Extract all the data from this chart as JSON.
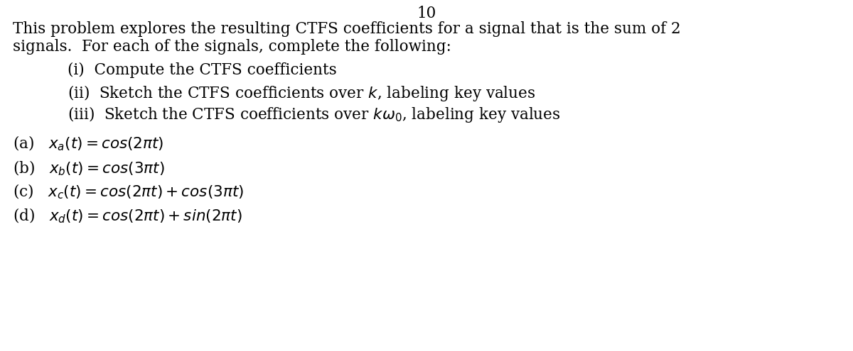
{
  "background_color": "#ffffff",
  "top_number": "10",
  "line1": "This problem explores the resulting CTFS coefficients for a signal that is the sum of 2",
  "line2": "signals.  For each of the signals, complete the following:",
  "item1": "(i)  Compute the CTFS coefficients",
  "item2": "(ii)  Sketch the CTFS coefficients over $k$, labeling key values",
  "item3": "(iii)  Sketch the CTFS coefficients over $k\\omega_0$, labeling key values",
  "part_a": "(a)   $x_a(t) = cos(2\\pi t)$",
  "part_b": "(b)   $x_b(t) = cos(3\\pi t)$",
  "part_c": "(c)   $x_c(t) = cos(2\\pi t) + cos(3\\pi t)$",
  "part_d": "(d)   $x_d(t) = cos(2\\pi t) + sin(2\\pi t)$",
  "font_size_body": 15.5,
  "font_size_math": 15.5,
  "font_family": "serif"
}
